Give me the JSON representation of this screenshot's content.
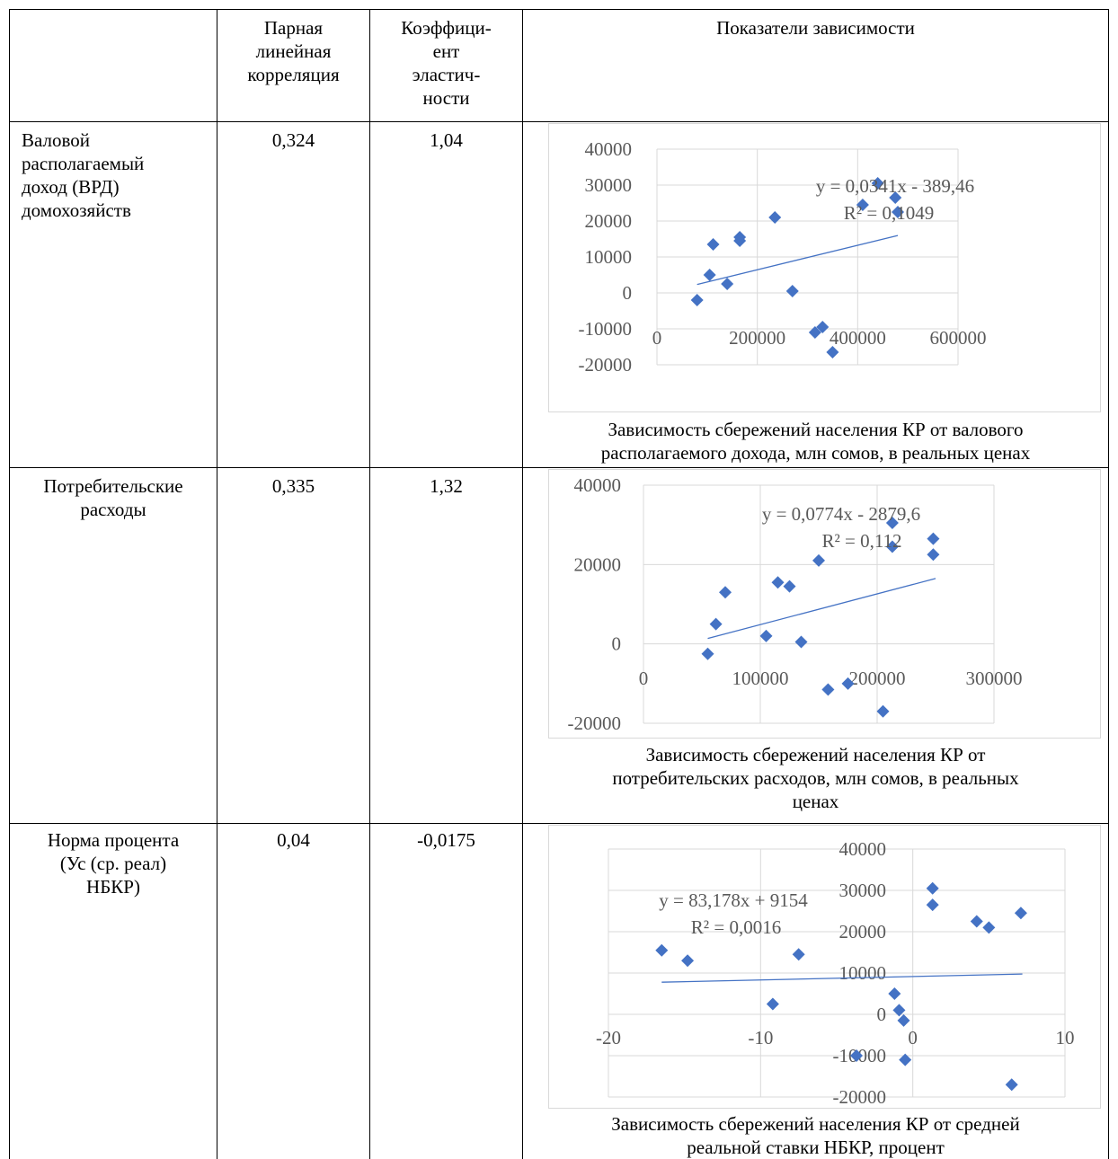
{
  "table": {
    "headers": {
      "col1": "",
      "col2": [
        "Парная",
        "линейная",
        "корреляция"
      ],
      "col3": [
        "Коэффици-",
        "ент",
        "эластич-",
        "ности"
      ],
      "col4": "Показатели зависимости"
    },
    "rows": [
      {
        "name": [
          "Валовой",
          "располагаемый",
          "доход (ВРД)",
          "домохозяйств"
        ],
        "correlation": "0,324",
        "elasticity": "1,04",
        "caption": [
          "Зависимость сбережений населения КР от валового",
          "располагаемого дохода, млн сомов, в реальных ценах"
        ]
      },
      {
        "name": [
          "Потребительские",
          "расходы"
        ],
        "correlation": "0,335",
        "elasticity": "1,32",
        "caption": [
          "Зависимость сбережений населения КР от",
          "потребительских расходов, млн сомов, в реальных",
          "ценах"
        ]
      },
      {
        "name": [
          "Норма процента",
          "(Ус (ср. реал)",
          "НБКР)"
        ],
        "correlation": "0,04",
        "elasticity": "-0,0175",
        "caption": [
          "Зависимость сбережений населения КР от средней",
          "реальной ставки НБКР, процент"
        ]
      }
    ]
  },
  "colors": {
    "marker": "#4472c4",
    "trend": "#4472c4",
    "grid": "#d9d9d9",
    "axis_text": "#595959"
  },
  "chart_data": [
    {
      "type": "scatter",
      "xlim": [
        0,
        600000
      ],
      "ylim": [
        -20000,
        40000
      ],
      "x_ticks": [
        "0",
        "200000",
        "400000",
        "600000"
      ],
      "y_ticks": [
        "40000",
        "30000",
        "20000",
        "10000",
        "0",
        "-10000",
        "-20000"
      ],
      "x_tick_values": [
        0,
        200000,
        400000,
        600000
      ],
      "y_tick_values": [
        40000,
        30000,
        20000,
        10000,
        0,
        -10000,
        -20000
      ],
      "equation": "y = 0,0341x - 389,46",
      "r2": "R² = 0,1049",
      "trend": {
        "slope": 0.0341,
        "intercept": -389.46,
        "x_range": [
          80000,
          480000
        ]
      },
      "points": [
        [
          80000,
          -2000
        ],
        [
          105000,
          5000
        ],
        [
          112000,
          13500
        ],
        [
          140000,
          2500
        ],
        [
          165000,
          15500
        ],
        [
          165000,
          14500
        ],
        [
          235000,
          21000
        ],
        [
          270000,
          500
        ],
        [
          315000,
          -11000
        ],
        [
          330000,
          -9500
        ],
        [
          350000,
          -16500
        ],
        [
          410000,
          24500
        ],
        [
          440000,
          30500
        ],
        [
          475000,
          26500
        ],
        [
          480000,
          22500
        ]
      ]
    },
    {
      "type": "scatter",
      "xlim": [
        0,
        300000
      ],
      "ylim": [
        -20000,
        40000
      ],
      "x_ticks": [
        "0",
        "100000",
        "200000",
        "300000"
      ],
      "y_ticks": [
        "40000",
        "20000",
        "0",
        "-20000"
      ],
      "x_tick_values": [
        0,
        100000,
        200000,
        300000
      ],
      "y_tick_values": [
        40000,
        20000,
        0,
        -20000
      ],
      "equation": "y = 0,0774x - 2879,6",
      "r2": "R² = 0,112",
      "trend": {
        "slope": 0.0774,
        "intercept": -2879.6,
        "x_range": [
          55000,
          250000
        ]
      },
      "points": [
        [
          55000,
          -2500
        ],
        [
          62000,
          5000
        ],
        [
          70000,
          13000
        ],
        [
          105000,
          2000
        ],
        [
          115000,
          15500
        ],
        [
          125000,
          14500
        ],
        [
          135000,
          500
        ],
        [
          150000,
          21000
        ],
        [
          158000,
          -11500
        ],
        [
          175000,
          -10000
        ],
        [
          205000,
          -17000
        ],
        [
          213000,
          24500
        ],
        [
          213000,
          30500
        ],
        [
          248000,
          22500
        ],
        [
          248000,
          26500
        ]
      ]
    },
    {
      "type": "scatter",
      "xlim": [
        -20,
        10
      ],
      "ylim": [
        -20000,
        40000
      ],
      "x_ticks": [
        "-20",
        "-10",
        "0",
        "10"
      ],
      "y_ticks": [
        "40000",
        "30000",
        "20000",
        "10000",
        "0",
        "-10000",
        "-20000"
      ],
      "x_tick_values": [
        -20,
        -10,
        0,
        10
      ],
      "y_tick_values": [
        40000,
        30000,
        20000,
        10000,
        0,
        -10000,
        -20000
      ],
      "equation": "y = 83,178x + 9154",
      "r2": "R² = 0,0016",
      "trend": {
        "slope": 83.178,
        "intercept": 9154,
        "x_range": [
          -16.5,
          7.2
        ]
      },
      "points": [
        [
          -16.5,
          15500
        ],
        [
          -14.8,
          13000
        ],
        [
          -9.2,
          2500
        ],
        [
          -7.5,
          14500
        ],
        [
          -3.7,
          -10000
        ],
        [
          -1.2,
          5000
        ],
        [
          -0.9,
          1000
        ],
        [
          -0.6,
          -1500
        ],
        [
          -0.5,
          -11000
        ],
        [
          1.3,
          26500
        ],
        [
          1.3,
          30500
        ],
        [
          4.2,
          22500
        ],
        [
          5.0,
          21000
        ],
        [
          7.1,
          24500
        ],
        [
          6.5,
          -17000
        ]
      ]
    }
  ]
}
